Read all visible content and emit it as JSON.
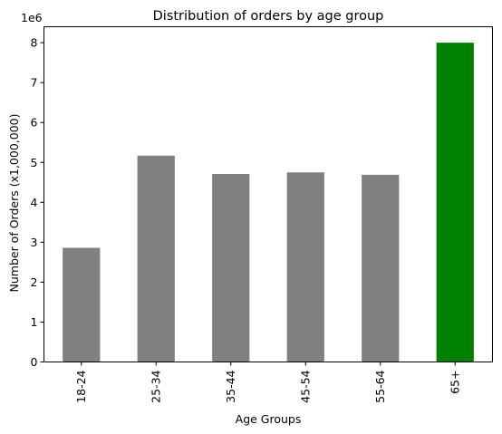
{
  "chart_data": {
    "type": "bar",
    "title": "Distribution of orders by age group",
    "xlabel": "Age Groups",
    "ylabel": "Number of Orders (x1,000,000)",
    "offset_text": "1e6",
    "categories": [
      "18-24",
      "25-34",
      "35-44",
      "45-54",
      "55-64",
      "65+"
    ],
    "values": [
      2.86,
      5.17,
      4.71,
      4.75,
      4.69,
      8.0
    ],
    "value_multiplier": 1000000,
    "bar_colors": [
      "#808080",
      "#808080",
      "#808080",
      "#808080",
      "#808080",
      "#008000"
    ],
    "ylim": [
      0,
      8.4
    ],
    "yticks": [
      0,
      1,
      2,
      3,
      4,
      5,
      6,
      7,
      8
    ],
    "grid": false,
    "legend": "none"
  }
}
